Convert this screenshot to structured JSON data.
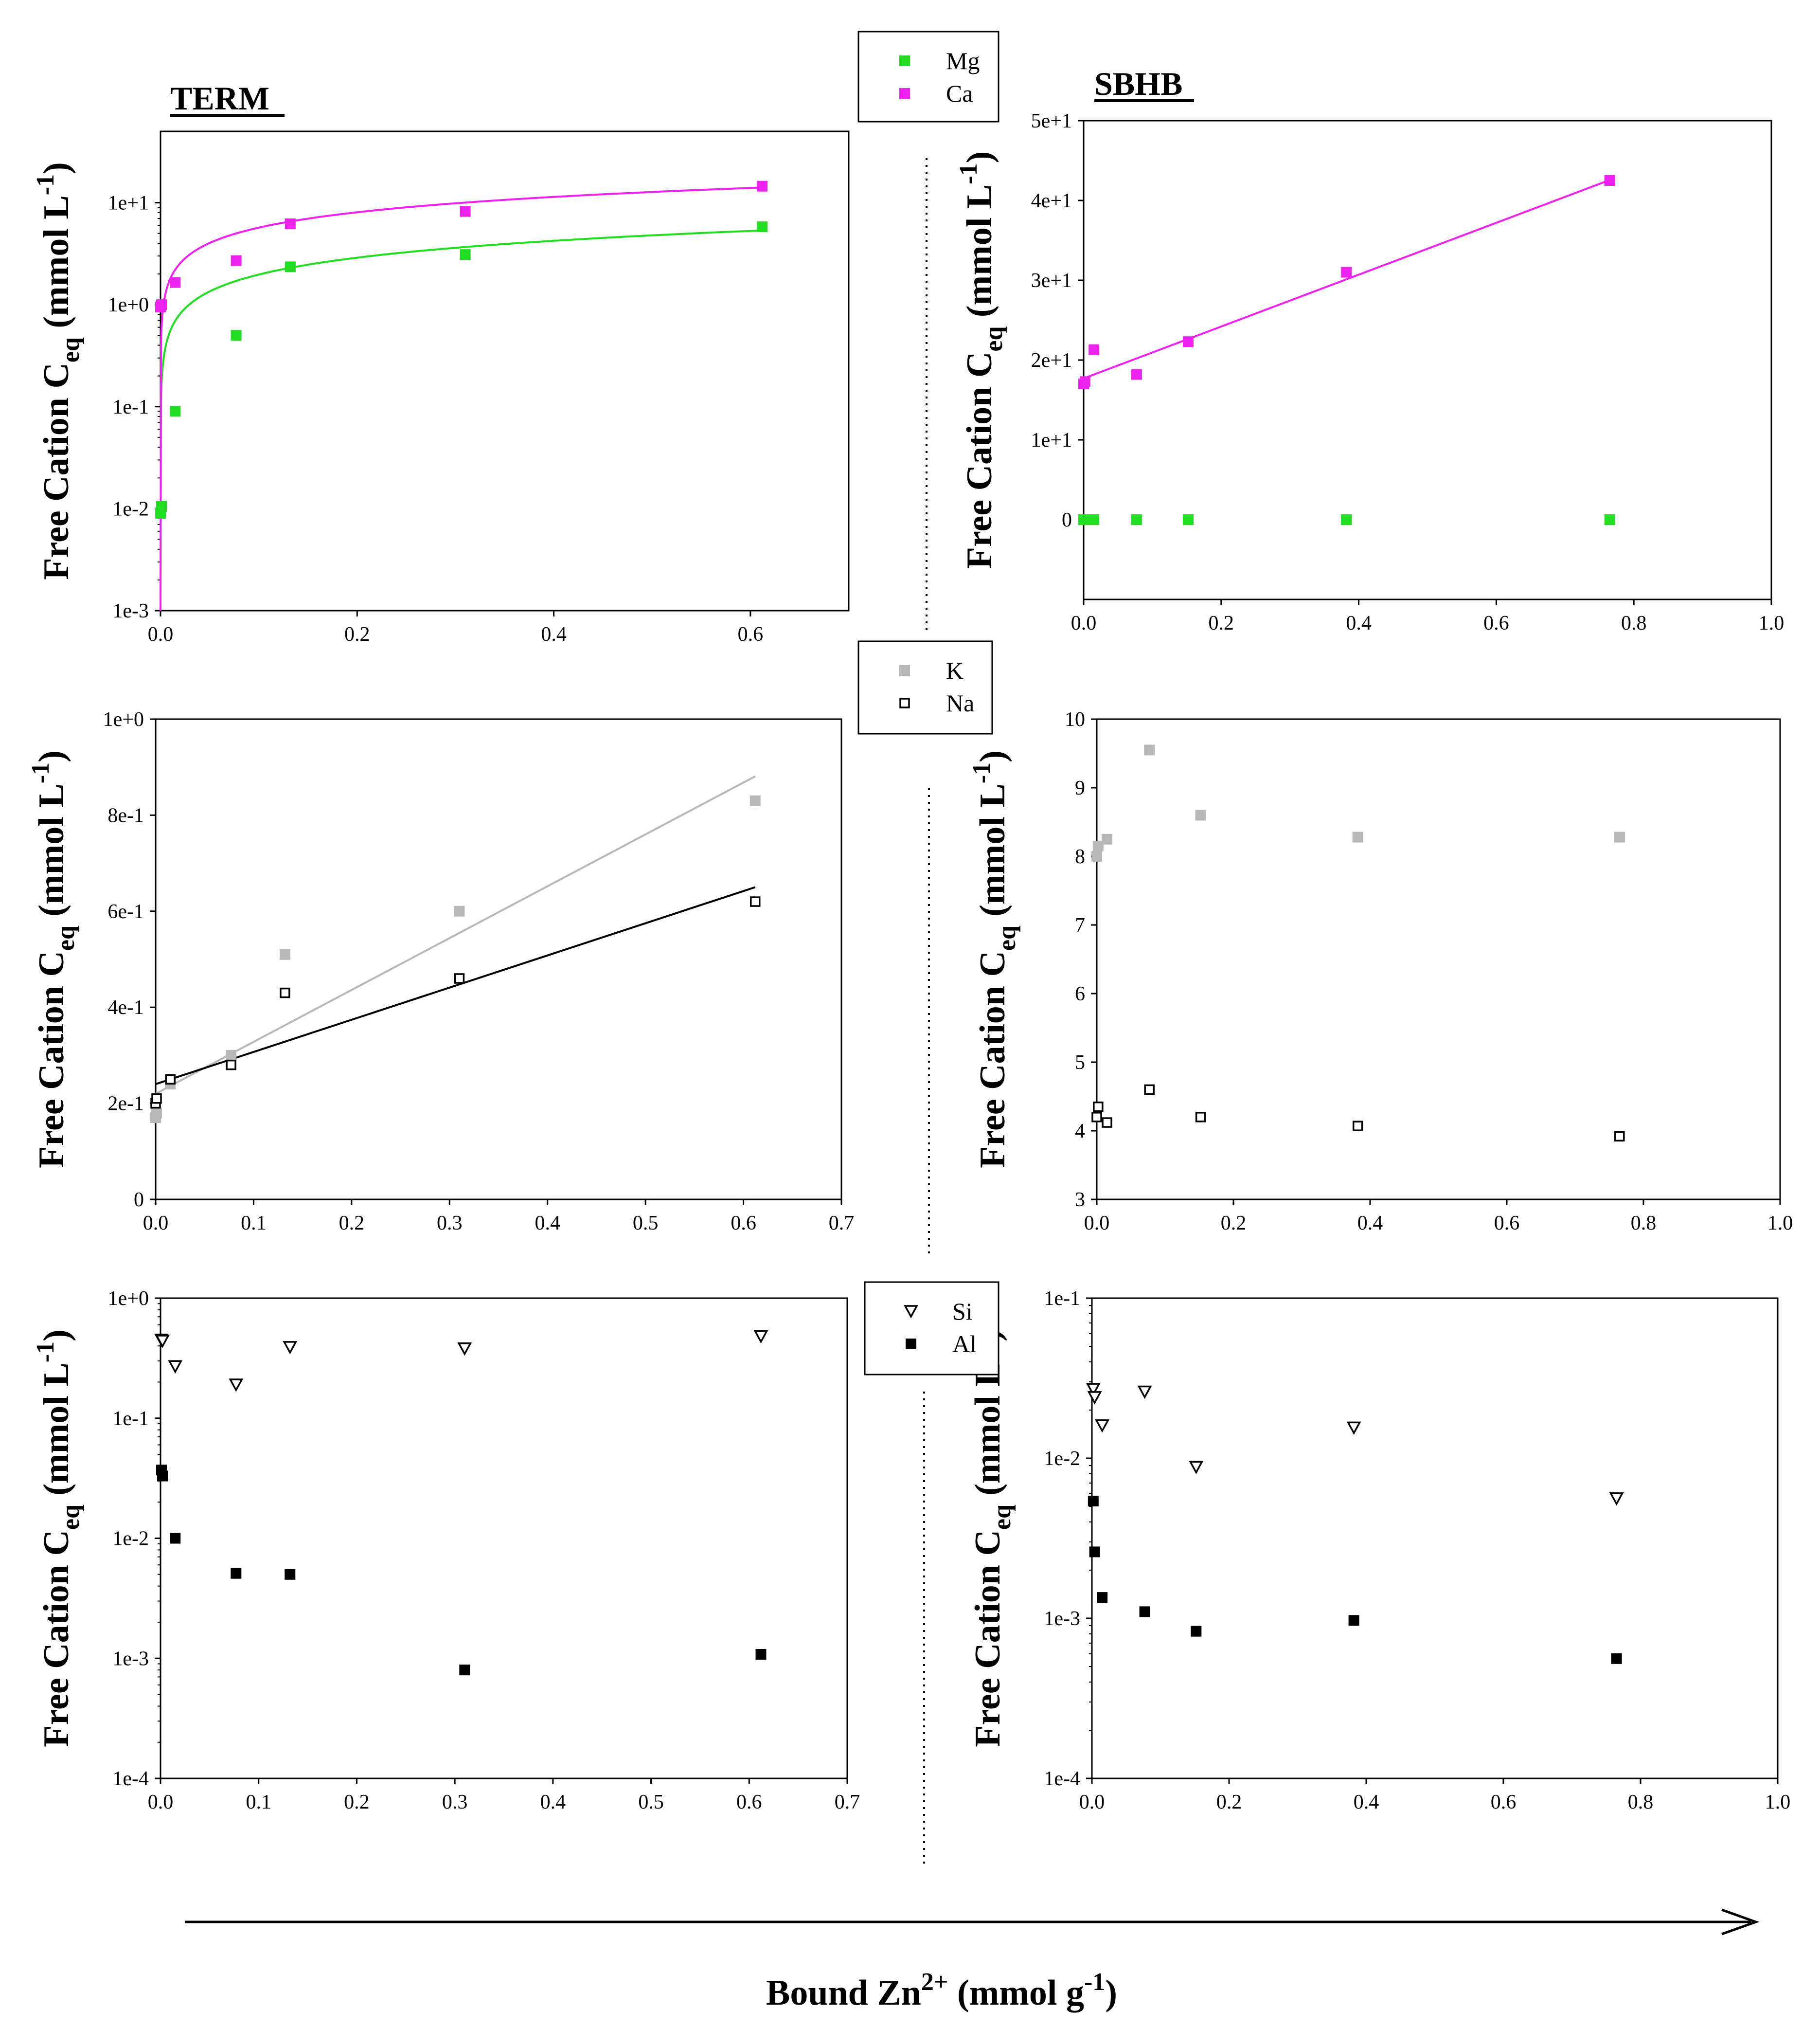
{
  "figure": {
    "x_title": "Bound Zn",
    "x_title_sup": "2+",
    "x_title_unit": "(mmol g",
    "x_title_unit_sup": "-1",
    "x_title_end": ")"
  },
  "legends": [
    {
      "id": "mg-ca",
      "entries": [
        {
          "label": "Mg",
          "color": "#22dd22",
          "marker": "filled-square"
        },
        {
          "label": "Ca",
          "color": "#ee22ee",
          "marker": "filled-square"
        }
      ]
    },
    {
      "id": "k-na",
      "entries": [
        {
          "label": "K",
          "color": "#b8b8b8",
          "marker": "filled-square"
        },
        {
          "label": "Na",
          "color": "#000000",
          "marker": "open-square"
        }
      ]
    },
    {
      "id": "si-al",
      "entries": [
        {
          "label": "Si",
          "color": "#000000",
          "marker": "open-triangle-down"
        },
        {
          "label": "Al",
          "color": "#000000",
          "marker": "filled-square"
        }
      ]
    }
  ],
  "chart_data": [
    {
      "id": "term-mgca",
      "type": "scatter",
      "title": "TERM",
      "ylabel": "Free Cation C",
      "ylabel_sub": "eq",
      "ylabel_unit": " (mmol L",
      "ylabel_unit_sup": "-1",
      "ylabel_end": ")",
      "yscale": "log",
      "xlim": [
        0,
        0.7
      ],
      "ylim": [
        0.001,
        50
      ],
      "xticks": [
        0,
        0.2,
        0.4,
        0.6
      ],
      "xtick_labels": [
        "0.0",
        "0.2",
        "0.4",
        "0.6"
      ],
      "yticks": [
        0.001,
        0.01,
        0.1,
        1,
        10
      ],
      "ytick_labels": [
        "1e-3",
        "1e-2",
        "1e-1",
        "1e+0",
        "1e+1"
      ],
      "series": [
        {
          "name": "Mg",
          "color": "#22dd22",
          "marker": "filled-square",
          "x": [
            0,
            0.001,
            0.015,
            0.077,
            0.132,
            0.31,
            0.612
          ],
          "y": [
            0.009,
            0.0105,
            0.09,
            0.5,
            2.35,
            3.1,
            5.8
          ],
          "fit": {
            "type": "power",
            "a": 7.0,
            "b": 0.55,
            "color": "#22dd22"
          }
        },
        {
          "name": "Ca",
          "color": "#ee22ee",
          "marker": "filled-square",
          "x": [
            0,
            0.001,
            0.015,
            0.077,
            0.132,
            0.31,
            0.612
          ],
          "y": [
            0.95,
            1.0,
            1.65,
            2.7,
            6.2,
            8.2,
            14.5
          ],
          "fit": {
            "type": "power",
            "a": 18.0,
            "b": 0.5,
            "color": "#ee22ee"
          }
        }
      ]
    },
    {
      "id": "sbhb-mgca",
      "type": "scatter",
      "title": "SBHB",
      "ylabel": "Free Cation C",
      "ylabel_sub": "eq",
      "ylabel_unit": " (mmol L",
      "ylabel_unit_sup": "-1",
      "ylabel_end": ")",
      "yscale": "linear",
      "xlim": [
        0,
        1.0
      ],
      "ylim": [
        -10,
        50
      ],
      "xticks": [
        0,
        0.2,
        0.4,
        0.6,
        0.8,
        1.0
      ],
      "xtick_labels": [
        "0.0",
        "0.2",
        "0.4",
        "0.6",
        "0.8",
        "1.0"
      ],
      "yticks": [
        0,
        10,
        20,
        30,
        40,
        50
      ],
      "ytick_labels": [
        "0",
        "1e+1",
        "2e+1",
        "3e+1",
        "4e+1",
        "5e+1"
      ],
      "series": [
        {
          "name": "Mg",
          "color": "#22dd22",
          "marker": "filled-square",
          "x": [
            0,
            0.002,
            0.015,
            0.077,
            0.152,
            0.382,
            0.765
          ],
          "y": [
            0,
            0,
            0,
            0,
            0,
            0,
            0
          ]
        },
        {
          "name": "Ca",
          "color": "#ee22ee",
          "marker": "filled-square",
          "x": [
            0,
            0.002,
            0.015,
            0.077,
            0.152,
            0.382,
            0.765
          ],
          "y": [
            17.0,
            17.3,
            21.3,
            18.2,
            22.3,
            31.0,
            42.5
          ],
          "fit": {
            "type": "linear",
            "a": 17.7,
            "b": 32.5,
            "x_range": [
              0,
              0.765
            ],
            "color": "#ee22ee"
          }
        }
      ]
    },
    {
      "id": "term-kna",
      "type": "scatter",
      "ylabel": "Free Cation C",
      "ylabel_sub": "eq",
      "ylabel_unit": " (mmol L",
      "ylabel_unit_sup": "-1",
      "ylabel_end": ")",
      "yscale": "linear",
      "xlim": [
        0,
        0.7
      ],
      "ylim": [
        0,
        1.0
      ],
      "xticks": [
        0,
        0.1,
        0.2,
        0.3,
        0.4,
        0.5,
        0.6,
        0.7
      ],
      "xtick_labels": [
        "0.0",
        "0.1",
        "0.2",
        "0.3",
        "0.4",
        "0.5",
        "0.6",
        "0.7"
      ],
      "yticks": [
        0,
        0.2,
        0.4,
        0.6,
        0.8,
        1.0
      ],
      "ytick_labels": [
        "0",
        "2e-1",
        "4e-1",
        "6e-1",
        "8e-1",
        "1e+0"
      ],
      "series": [
        {
          "name": "K",
          "color": "#b8b8b8",
          "marker": "filled-square",
          "x": [
            0,
            0.001,
            0.015,
            0.077,
            0.132,
            0.31,
            0.612
          ],
          "y": [
            0.17,
            0.18,
            0.24,
            0.3,
            0.51,
            0.6,
            0.83
          ],
          "fit": {
            "type": "linear",
            "a": 0.22,
            "b": 1.08,
            "x_range": [
              0,
              0.612
            ],
            "color": "#b8b8b8"
          }
        },
        {
          "name": "Na",
          "color": "#000000",
          "marker": "open-square",
          "x": [
            0,
            0.001,
            0.015,
            0.077,
            0.132,
            0.31,
            0.612
          ],
          "y": [
            0.2,
            0.21,
            0.25,
            0.28,
            0.43,
            0.46,
            0.62
          ],
          "fit": {
            "type": "linear",
            "a": 0.24,
            "b": 0.67,
            "x_range": [
              0,
              0.612
            ],
            "color": "#000000"
          }
        }
      ]
    },
    {
      "id": "sbhb-kna",
      "type": "scatter",
      "ylabel": "Free Cation C",
      "ylabel_sub": "eq",
      "ylabel_unit": " (mmol L",
      "ylabel_unit_sup": "-1",
      "ylabel_end": ")",
      "yscale": "linear",
      "xlim": [
        0,
        1.0
      ],
      "ylim": [
        3,
        10
      ],
      "xticks": [
        0,
        0.2,
        0.4,
        0.6,
        0.8,
        1.0
      ],
      "xtick_labels": [
        "0.0",
        "0.2",
        "0.4",
        "0.6",
        "0.8",
        "1.0"
      ],
      "yticks": [
        3,
        4,
        5,
        6,
        7,
        8,
        9,
        10
      ],
      "ytick_labels": [
        "3",
        "4",
        "5",
        "6",
        "7",
        "8",
        "9",
        "10"
      ],
      "series": [
        {
          "name": "K",
          "color": "#b8b8b8",
          "marker": "filled-square",
          "x": [
            0,
            0.002,
            0.015,
            0.077,
            0.152,
            0.382,
            0.765
          ],
          "y": [
            8.0,
            8.15,
            8.25,
            9.55,
            8.6,
            8.28,
            8.28
          ]
        },
        {
          "name": "Na",
          "color": "#000000",
          "marker": "open-square",
          "x": [
            0,
            0.002,
            0.015,
            0.077,
            0.152,
            0.382,
            0.765
          ],
          "y": [
            4.2,
            4.35,
            4.12,
            4.6,
            4.2,
            4.07,
            3.92
          ]
        }
      ]
    },
    {
      "id": "term-sial",
      "type": "scatter",
      "ylabel": "Free Cation C",
      "ylabel_sub": "eq",
      "ylabel_unit": " (mmol L",
      "ylabel_unit_sup": "-1",
      "ylabel_end": ")",
      "yscale": "log",
      "xlim": [
        0,
        0.7
      ],
      "ylim": [
        0.0001,
        1
      ],
      "xticks": [
        0,
        0.1,
        0.2,
        0.3,
        0.4,
        0.5,
        0.6,
        0.7
      ],
      "xtick_labels": [
        "0.0",
        "0.1",
        "0.2",
        "0.3",
        "0.4",
        "0.5",
        "0.6",
        "0.7"
      ],
      "yticks": [
        0.0001,
        0.001,
        0.01,
        0.1,
        1
      ],
      "ytick_labels": [
        "1e-4",
        "1e-3",
        "1e-2",
        "1e-1",
        "1e+0"
      ],
      "series": [
        {
          "name": "Si",
          "color": "#000000",
          "marker": "open-triangle-down",
          "x": [
            0.001,
            0.002,
            0.015,
            0.077,
            0.132,
            0.31,
            0.612
          ],
          "y": [
            0.45,
            0.44,
            0.27,
            0.19,
            0.39,
            0.38,
            0.48
          ]
        },
        {
          "name": "Al",
          "color": "#000000",
          "marker": "filled-square",
          "x": [
            0.001,
            0.002,
            0.015,
            0.077,
            0.132,
            0.31,
            0.612
          ],
          "y": [
            0.037,
            0.033,
            0.01,
            0.0051,
            0.005,
            0.0008,
            0.00108
          ]
        }
      ]
    },
    {
      "id": "sbhb-sial",
      "type": "scatter",
      "ylabel": "Free Cation C",
      "ylabel_sub": "eq",
      "ylabel_unit": " (mmol L",
      "ylabel_unit_sup": "-1",
      "ylabel_end": ")",
      "yscale": "log",
      "xlim": [
        0,
        1.0
      ],
      "ylim": [
        0.0001,
        0.1
      ],
      "xticks": [
        0,
        0.2,
        0.4,
        0.6,
        0.8,
        1.0
      ],
      "xtick_labels": [
        "0.0",
        "0.2",
        "0.4",
        "0.6",
        "0.8",
        "1.0"
      ],
      "yticks": [
        0.0001,
        0.001,
        0.01,
        0.1
      ],
      "ytick_labels": [
        "1e-4",
        "1e-3",
        "1e-2",
        "1e-1"
      ],
      "series": [
        {
          "name": "Si",
          "color": "#000000",
          "marker": "open-triangle-down",
          "x": [
            0.002,
            0.004,
            0.015,
            0.077,
            0.152,
            0.382,
            0.765
          ],
          "y": [
            0.027,
            0.024,
            0.016,
            0.026,
            0.0088,
            0.0155,
            0.0056
          ]
        },
        {
          "name": "Al",
          "color": "#000000",
          "marker": "filled-square",
          "x": [
            0.002,
            0.004,
            0.015,
            0.077,
            0.152,
            0.382,
            0.765
          ],
          "y": [
            0.0054,
            0.0026,
            0.00135,
            0.0011,
            0.00083,
            0.00097,
            0.00056
          ]
        }
      ]
    }
  ]
}
